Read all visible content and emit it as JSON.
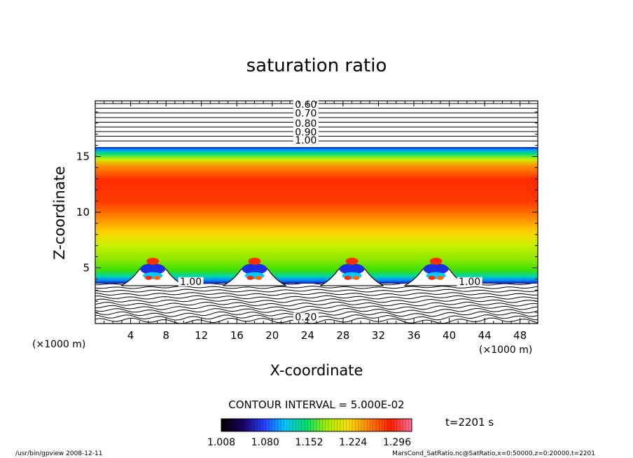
{
  "chart_data": {
    "type": "heatmap",
    "title": "saturation ratio",
    "xlabel": "X-coordinate",
    "ylabel": "Z-coordinate",
    "x_unit_label": "(×1000 m)",
    "y_unit_label": "(×1000 m)",
    "xlim": [
      0,
      50
    ],
    "ylim": [
      0,
      20
    ],
    "x_ticks": [
      4,
      8,
      12,
      16,
      20,
      24,
      28,
      32,
      36,
      40,
      44,
      48
    ],
    "y_ticks": [
      5,
      10,
      15
    ],
    "contour_interval_text": "CONTOUR INTERVAL = 5.000E-02",
    "time_text": "t=2201 s",
    "colorbar": {
      "range": [
        1.008,
        1.32
      ],
      "ticks": [
        "1.008",
        "1.080",
        "1.152",
        "1.224",
        "1.296"
      ],
      "colors": [
        "#000000",
        "#1a0060",
        "#2a3cff",
        "#00c8ff",
        "#00e070",
        "#a8f000",
        "#ffe000",
        "#ff8000",
        "#ff2000",
        "#ff70a0"
      ]
    },
    "contour_labels": [
      {
        "text": "0.60",
        "x": 23.8,
        "z": 19.5
      },
      {
        "text": "0.70",
        "x": 23.8,
        "z": 18.7
      },
      {
        "text": "0.80",
        "x": 23.8,
        "z": 17.8
      },
      {
        "text": "0.90",
        "x": 23.8,
        "z": 17.0
      },
      {
        "text": "1.00",
        "x": 23.8,
        "z": 16.3
      },
      {
        "text": "1.00",
        "x": 10.8,
        "z": 3.6
      },
      {
        "text": "1.00",
        "x": 42.3,
        "z": 3.6
      },
      {
        "text": "0.20",
        "x": 23.8,
        "z": 0.4
      }
    ],
    "plumes_x": [
      6.5,
      18.0,
      29.0,
      38.5
    ]
  },
  "footer": {
    "left": "/usr/bin/gpview   2008-12-11",
    "right": "MarsCond_SatRatio.nc@SatRatio,x=0:50000,z=0:20000,t=2201"
  }
}
